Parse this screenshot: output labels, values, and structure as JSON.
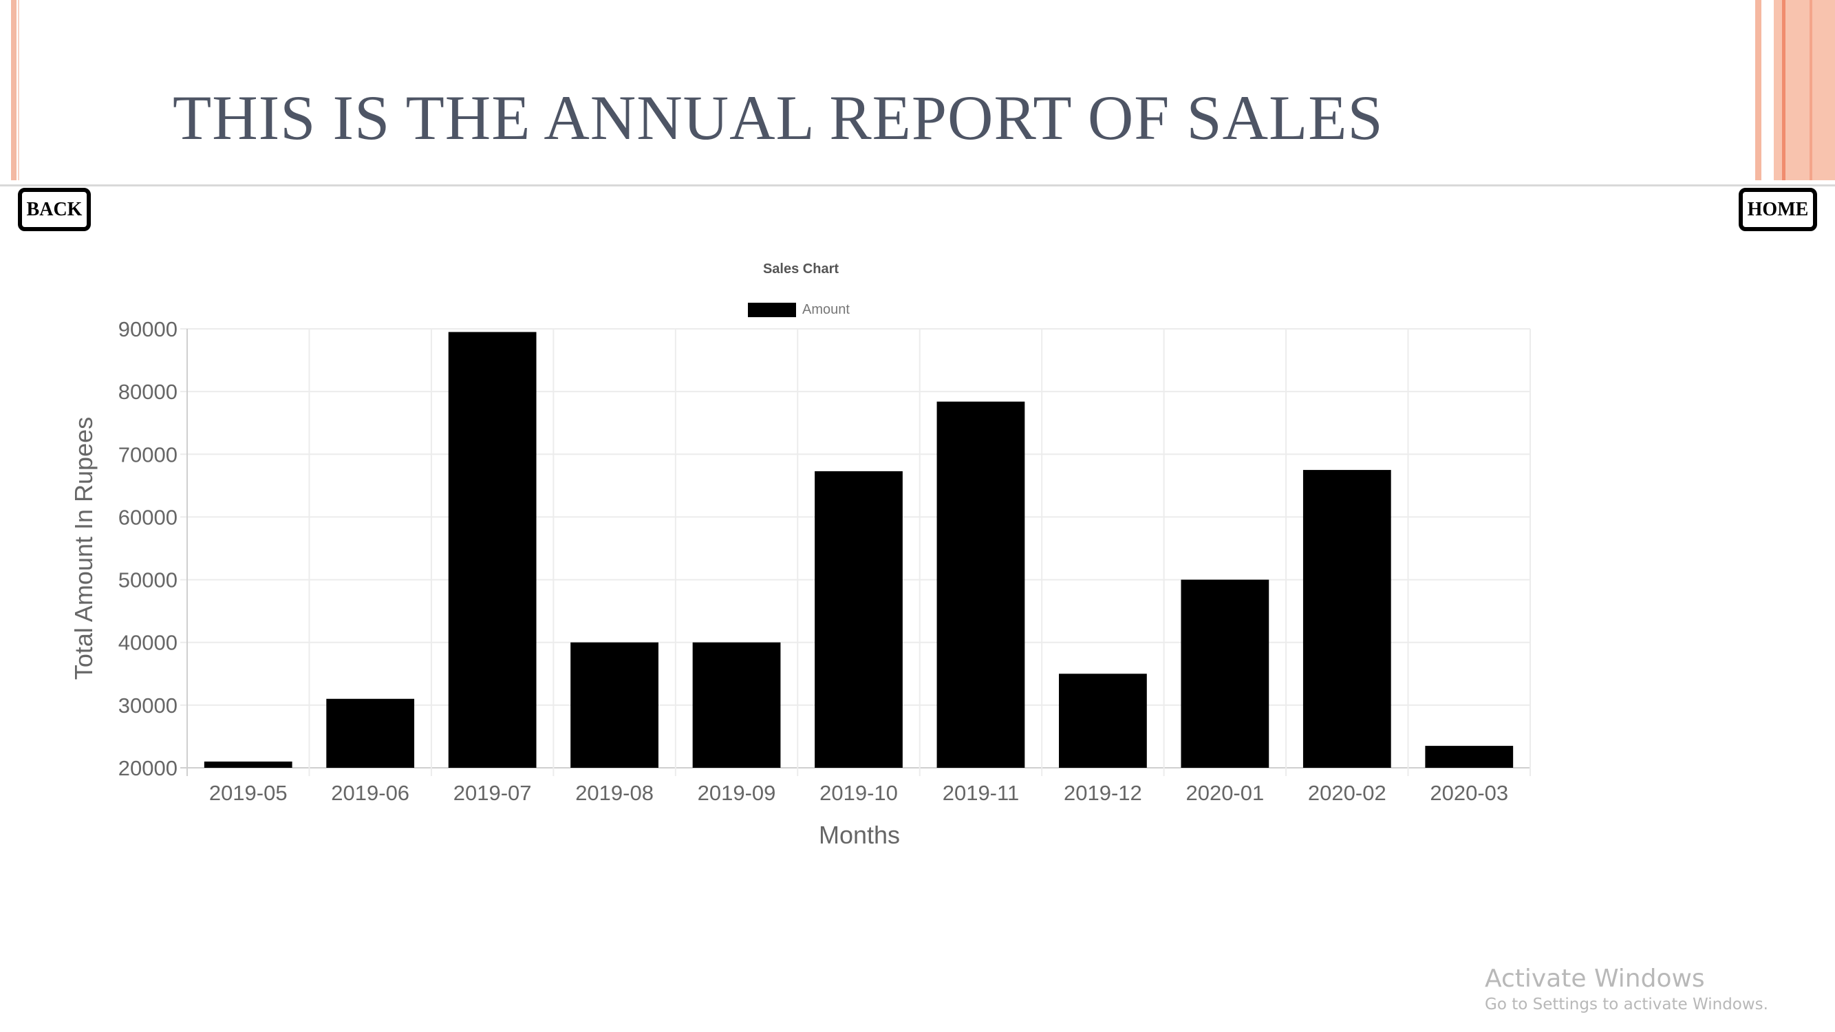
{
  "page": {
    "title": "THIS IS THE ANNUAL REPORT OF SALES",
    "back_label": "BACK",
    "home_label": "HOME"
  },
  "watermark": {
    "title": "Activate Windows",
    "subtitle": "Go to Settings to activate Windows."
  },
  "colors": {
    "bar": "#000000",
    "title": "#4e5565",
    "accent": "#f5b8a1"
  },
  "chart_data": {
    "type": "bar",
    "title": "Sales Chart",
    "xlabel": "Months",
    "ylabel": "Total Amount In Rupees",
    "ylim": [
      20000,
      90000
    ],
    "yticks": [
      20000,
      30000,
      40000,
      50000,
      60000,
      70000,
      80000,
      90000
    ],
    "grid": true,
    "legend_position": "top",
    "categories": [
      "2019-05",
      "2019-06",
      "2019-07",
      "2019-08",
      "2019-09",
      "2019-10",
      "2019-11",
      "2019-12",
      "2020-01",
      "2020-02",
      "2020-03"
    ],
    "series": [
      {
        "name": "Amount",
        "color": "#000000",
        "values": [
          21000,
          31000,
          89500,
          40000,
          40000,
          67300,
          78400,
          35000,
          50000,
          67500,
          23500
        ]
      }
    ]
  }
}
